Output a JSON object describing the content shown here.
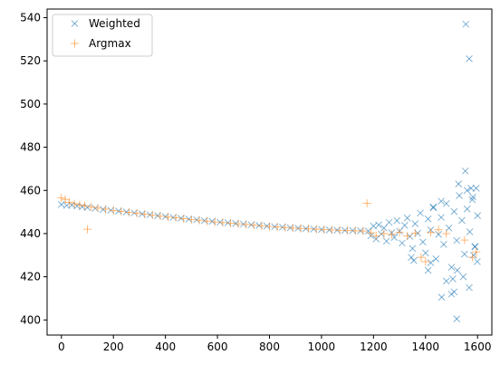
{
  "chart_data": {
    "type": "scatter",
    "title": "",
    "xlabel": "",
    "ylabel": "",
    "xlim": [
      -55,
      1655
    ],
    "ylim": [
      393,
      544
    ],
    "xticks": [
      0,
      200,
      400,
      600,
      800,
      1000,
      1200,
      1400,
      1600
    ],
    "yticks": [
      400,
      420,
      440,
      460,
      480,
      500,
      520,
      540
    ],
    "grid": false,
    "legend": {
      "position": "top-left",
      "entries": [
        "Weighted",
        "Argmax"
      ]
    },
    "series": [
      {
        "name": "Weighted",
        "marker": "x",
        "color": "#1f77b4",
        "points": [
          [
            0,
            453.5
          ],
          [
            20,
            453.0
          ],
          [
            40,
            453.2
          ],
          [
            60,
            452.8
          ],
          [
            80,
            452.4
          ],
          [
            100,
            452.1
          ],
          [
            130,
            451.7
          ],
          [
            160,
            451.2
          ],
          [
            190,
            450.8
          ],
          [
            220,
            450.4
          ],
          [
            250,
            450.0
          ],
          [
            280,
            449.6
          ],
          [
            310,
            449.1
          ],
          [
            340,
            448.7
          ],
          [
            370,
            448.3
          ],
          [
            400,
            447.9
          ],
          [
            430,
            447.5
          ],
          [
            460,
            447.1
          ],
          [
            490,
            446.7
          ],
          [
            520,
            446.4
          ],
          [
            550,
            446.0
          ],
          [
            580,
            445.7
          ],
          [
            610,
            445.3
          ],
          [
            640,
            445.0
          ],
          [
            670,
            444.7
          ],
          [
            700,
            444.4
          ],
          [
            730,
            444.1
          ],
          [
            760,
            443.8
          ],
          [
            790,
            443.5
          ],
          [
            820,
            443.2
          ],
          [
            850,
            443.0
          ],
          [
            880,
            442.7
          ],
          [
            910,
            442.5
          ],
          [
            940,
            442.3
          ],
          [
            970,
            442.1
          ],
          [
            1000,
            441.9
          ],
          [
            1030,
            441.7
          ],
          [
            1060,
            441.6
          ],
          [
            1090,
            441.5
          ],
          [
            1120,
            441.4
          ],
          [
            1150,
            441.3
          ],
          [
            1180,
            441.2
          ],
          [
            1190,
            439.0
          ],
          [
            1200,
            443.5
          ],
          [
            1210,
            437.5
          ],
          [
            1220,
            444.0
          ],
          [
            1230,
            439.8
          ],
          [
            1240,
            442.6
          ],
          [
            1250,
            436.5
          ],
          [
            1260,
            445.2
          ],
          [
            1270,
            440.4
          ],
          [
            1280,
            438.2
          ],
          [
            1290,
            446.0
          ],
          [
            1300,
            441.1
          ],
          [
            1310,
            435.6
          ],
          [
            1320,
            443.8
          ],
          [
            1330,
            447.2
          ],
          [
            1340,
            438.7
          ],
          [
            1350,
            433.1
          ],
          [
            1360,
            444.6
          ],
          [
            1370,
            440.2
          ],
          [
            1380,
            449.5
          ],
          [
            1390,
            436.1
          ],
          [
            1400,
            431.0
          ],
          [
            1410,
            446.8
          ],
          [
            1420,
            441.7
          ],
          [
            1430,
            452.3
          ],
          [
            1440,
            428.3
          ],
          [
            1450,
            439.6
          ],
          [
            1460,
            447.5
          ],
          [
            1470,
            435.0
          ],
          [
            1480,
            453.9
          ],
          [
            1490,
            442.6
          ],
          [
            1500,
            424.4
          ],
          [
            1510,
            450.2
          ],
          [
            1520,
            436.8
          ],
          [
            1530,
            457.6
          ],
          [
            1540,
            446.1
          ],
          [
            1550,
            430.5
          ],
          [
            1560,
            451.4
          ],
          [
            1570,
            440.8
          ],
          [
            1580,
            455.7
          ],
          [
            1590,
            433.9
          ],
          [
            1600,
            448.3
          ],
          [
            1355,
            427.5
          ],
          [
            1345,
            429.0
          ],
          [
            1420,
            426.5
          ],
          [
            1410,
            423.0
          ],
          [
            1430,
            452.0
          ],
          [
            1460,
            455.0
          ],
          [
            1480,
            418.0
          ],
          [
            1505,
            419.0
          ],
          [
            1510,
            413.0
          ],
          [
            1522,
            423.0
          ],
          [
            1527,
            463.0
          ],
          [
            1545,
            420.0
          ],
          [
            1553,
            469.0
          ],
          [
            1560,
            460.0
          ],
          [
            1568,
            415.0
          ],
          [
            1575,
            461.0
          ],
          [
            1582,
            457.0
          ],
          [
            1585,
            430.0
          ],
          [
            1590,
            434.0
          ],
          [
            1595,
            461.0
          ],
          [
            1599,
            427.0
          ],
          [
            1462,
            410.5
          ],
          [
            1500,
            412.0
          ],
          [
            1520,
            400.5
          ],
          [
            1555,
            537.0
          ],
          [
            1568,
            521.0
          ]
        ]
      },
      {
        "name": "Argmax",
        "marker": "+",
        "color": "#ff7f0e",
        "points": [
          [
            0,
            456.5
          ],
          [
            15,
            455.8
          ],
          [
            30,
            454.5
          ],
          [
            50,
            453.8
          ],
          [
            70,
            453.3
          ],
          [
            90,
            452.9
          ],
          [
            100,
            442.0
          ],
          [
            115,
            452.3
          ],
          [
            140,
            451.8
          ],
          [
            170,
            451.3
          ],
          [
            200,
            450.7
          ],
          [
            230,
            450.3
          ],
          [
            260,
            449.8
          ],
          [
            290,
            449.4
          ],
          [
            320,
            449.0
          ],
          [
            350,
            448.5
          ],
          [
            380,
            448.1
          ],
          [
            410,
            447.7
          ],
          [
            440,
            447.3
          ],
          [
            470,
            446.9
          ],
          [
            500,
            446.5
          ],
          [
            530,
            446.2
          ],
          [
            560,
            445.8
          ],
          [
            590,
            445.4
          ],
          [
            620,
            445.1
          ],
          [
            650,
            444.8
          ],
          [
            680,
            444.5
          ],
          [
            710,
            444.2
          ],
          [
            740,
            443.9
          ],
          [
            770,
            443.6
          ],
          [
            800,
            443.3
          ],
          [
            830,
            443.1
          ],
          [
            860,
            442.8
          ],
          [
            890,
            442.6
          ],
          [
            920,
            442.4
          ],
          [
            950,
            442.2
          ],
          [
            980,
            442.0
          ],
          [
            1010,
            441.8
          ],
          [
            1040,
            441.7
          ],
          [
            1070,
            441.5
          ],
          [
            1100,
            441.4
          ],
          [
            1130,
            441.3
          ],
          [
            1160,
            441.2
          ],
          [
            1175,
            454.0
          ],
          [
            1190,
            440.3
          ],
          [
            1210,
            439.0
          ],
          [
            1240,
            440.0
          ],
          [
            1270,
            439.6
          ],
          [
            1300,
            440.6
          ],
          [
            1330,
            438.9
          ],
          [
            1360,
            440.2
          ],
          [
            1383,
            429.0
          ],
          [
            1400,
            427.0
          ],
          [
            1420,
            440.5
          ],
          [
            1450,
            441.8
          ],
          [
            1480,
            440.0
          ],
          [
            1550,
            437.0
          ],
          [
            1580,
            429.0
          ],
          [
            1595,
            431.5
          ]
        ]
      }
    ]
  }
}
